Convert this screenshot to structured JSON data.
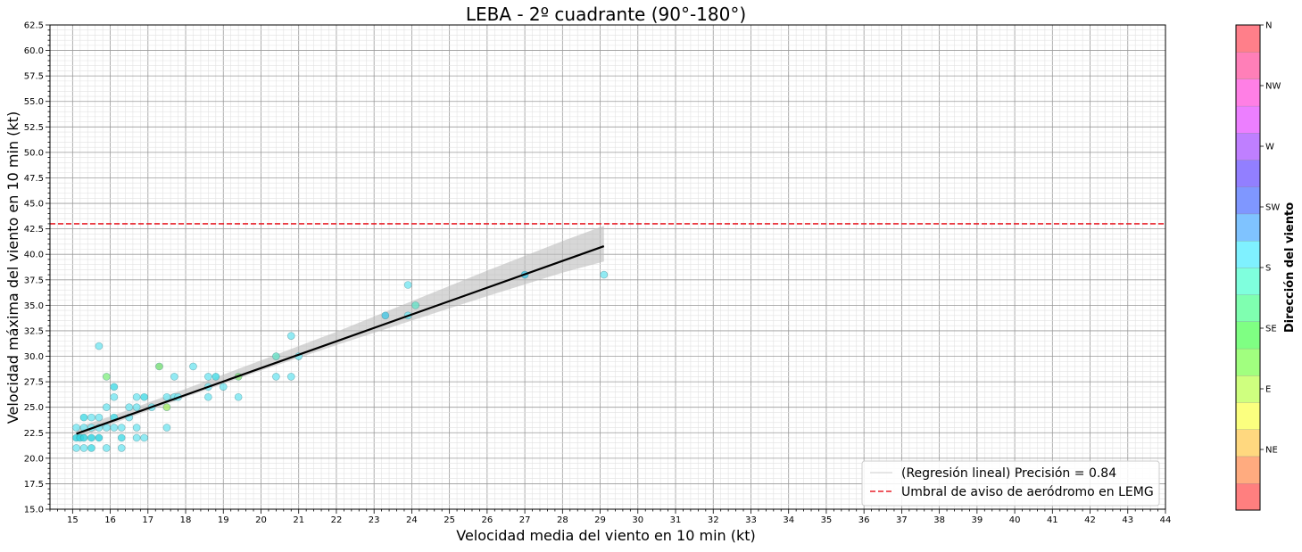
{
  "chart_data": {
    "type": "scatter",
    "title": "LEBA - 2º cuadrante (90°-180°)",
    "xlabel": "Velocidad media del viento en 10 min (kt)",
    "ylabel": "Velocidad máxima del viento en 10 min (kt)",
    "xlim": [
      14.4,
      44
    ],
    "ylim": [
      15,
      62.5
    ],
    "x_ticks": [
      "15",
      "16",
      "17",
      "18",
      "19",
      "20",
      "21",
      "22",
      "23",
      "24",
      "25",
      "26",
      "27",
      "28",
      "29",
      "30",
      "31",
      "32",
      "33",
      "34",
      "35",
      "36",
      "37",
      "38",
      "39",
      "40",
      "41",
      "42",
      "43",
      "44"
    ],
    "y_ticks": [
      "15.0",
      "17.5",
      "20.0",
      "22.5",
      "25.0",
      "27.5",
      "30.0",
      "32.5",
      "35.0",
      "37.5",
      "40.0",
      "42.5",
      "45.0",
      "47.5",
      "50.0",
      "52.5",
      "55.0",
      "57.5",
      "60.0",
      "62.5"
    ],
    "grid": true,
    "legend_position": "lower-right",
    "legend": [
      {
        "label": "(Regresión lineal) Precisión = 0.84",
        "color": "#dddddd",
        "style": "solid"
      },
      {
        "label": "Umbral de aviso de aeródromo en LEMG",
        "color": "#e8202a",
        "style": "dashed"
      }
    ],
    "threshold_y": 43,
    "regression": {
      "x": [
        15.1,
        29.1
      ],
      "y": [
        22.4,
        40.8
      ]
    },
    "band": {
      "x": [
        15.1,
        16,
        18,
        20,
        22,
        24,
        26,
        28,
        29.1
      ],
      "lower": [
        21.9,
        23.3,
        26.0,
        28.6,
        31.1,
        33.5,
        35.9,
        38.2,
        39.3
      ],
      "upper": [
        23.0,
        24.1,
        26.8,
        29.6,
        32.4,
        35.4,
        38.4,
        41.3,
        42.8
      ]
    },
    "points": [
      {
        "x": 15.1,
        "y": 21,
        "c": "#7fe7f2"
      },
      {
        "x": 15.1,
        "y": 22,
        "c": "#35d5e2"
      },
      {
        "x": 15.1,
        "y": 23,
        "c": "#7fe7f2"
      },
      {
        "x": 15.2,
        "y": 22,
        "c": "#35d5e2"
      },
      {
        "x": 15.3,
        "y": 21,
        "c": "#7fe7f2"
      },
      {
        "x": 15.3,
        "y": 22,
        "c": "#35d5e2"
      },
      {
        "x": 15.3,
        "y": 23,
        "c": "#7fe7f2"
      },
      {
        "x": 15.3,
        "y": 24,
        "c": "#4fdde8"
      },
      {
        "x": 15.5,
        "y": 21,
        "c": "#4fdde8"
      },
      {
        "x": 15.5,
        "y": 22,
        "c": "#35d5e2"
      },
      {
        "x": 15.5,
        "y": 23,
        "c": "#7fe7f2"
      },
      {
        "x": 15.5,
        "y": 24,
        "c": "#7fe7f2"
      },
      {
        "x": 15.7,
        "y": 22,
        "c": "#35d5e2"
      },
      {
        "x": 15.7,
        "y": 23,
        "c": "#7fe7f2"
      },
      {
        "x": 15.7,
        "y": 24,
        "c": "#7fe7f2"
      },
      {
        "x": 15.7,
        "y": 31,
        "c": "#7fe7f2"
      },
      {
        "x": 15.9,
        "y": 21,
        "c": "#7fe7f2"
      },
      {
        "x": 15.9,
        "y": 23,
        "c": "#7fe7f2"
      },
      {
        "x": 15.9,
        "y": 25,
        "c": "#7fe7f2"
      },
      {
        "x": 15.9,
        "y": 28,
        "c": "#8ef08c"
      },
      {
        "x": 16.1,
        "y": 23,
        "c": "#7fe7f2"
      },
      {
        "x": 16.1,
        "y": 24,
        "c": "#4fdde8"
      },
      {
        "x": 16.1,
        "y": 26,
        "c": "#7fe7f2"
      },
      {
        "x": 16.1,
        "y": 27,
        "c": "#4fdde8"
      },
      {
        "x": 16.3,
        "y": 21,
        "c": "#7fe7f2"
      },
      {
        "x": 16.3,
        "y": 22,
        "c": "#4fdde8"
      },
      {
        "x": 16.3,
        "y": 23,
        "c": "#7fe7f2"
      },
      {
        "x": 16.5,
        "y": 24,
        "c": "#7fe7f2"
      },
      {
        "x": 16.5,
        "y": 25,
        "c": "#7fe7f2"
      },
      {
        "x": 16.7,
        "y": 22,
        "c": "#7fe7f2"
      },
      {
        "x": 16.7,
        "y": 23,
        "c": "#7fe7f2"
      },
      {
        "x": 16.7,
        "y": 25,
        "c": "#7fe7f2"
      },
      {
        "x": 16.7,
        "y": 26,
        "c": "#7fe7f2"
      },
      {
        "x": 16.9,
        "y": 22,
        "c": "#7fe7f2"
      },
      {
        "x": 16.9,
        "y": 26,
        "c": "#4fdde8"
      },
      {
        "x": 17.1,
        "y": 25,
        "c": "#7fe7f2"
      },
      {
        "x": 17.3,
        "y": 29,
        "c": "#7fdf7d"
      },
      {
        "x": 17.5,
        "y": 23,
        "c": "#7fe7f2"
      },
      {
        "x": 17.5,
        "y": 25,
        "c": "#a8ec6e"
      },
      {
        "x": 17.5,
        "y": 26,
        "c": "#7fe7f2"
      },
      {
        "x": 17.7,
        "y": 26,
        "c": "#7fe7f2"
      },
      {
        "x": 17.7,
        "y": 28,
        "c": "#7fe7f2"
      },
      {
        "x": 17.8,
        "y": 26,
        "c": "#7fe7f2"
      },
      {
        "x": 18.2,
        "y": 29,
        "c": "#7fe7f2"
      },
      {
        "x": 18.6,
        "y": 26,
        "c": "#7fe7f2"
      },
      {
        "x": 18.6,
        "y": 27,
        "c": "#7fe7f2"
      },
      {
        "x": 18.6,
        "y": 28,
        "c": "#7fe7f2"
      },
      {
        "x": 18.8,
        "y": 28,
        "c": "#4fdde8"
      },
      {
        "x": 19.0,
        "y": 27,
        "c": "#7fe7f2"
      },
      {
        "x": 19.4,
        "y": 26,
        "c": "#7fe7f2"
      },
      {
        "x": 19.4,
        "y": 28,
        "c": "#8ee07e"
      },
      {
        "x": 20.4,
        "y": 28,
        "c": "#7fe7f2"
      },
      {
        "x": 20.4,
        "y": 30,
        "c": "#6fe0c8"
      },
      {
        "x": 20.8,
        "y": 28,
        "c": "#7fe7f2"
      },
      {
        "x": 20.8,
        "y": 32,
        "c": "#7fe7f2"
      },
      {
        "x": 21.0,
        "y": 30,
        "c": "#7fe7f2"
      },
      {
        "x": 23.3,
        "y": 34,
        "c": "#4fc8e4"
      },
      {
        "x": 23.9,
        "y": 34,
        "c": "#7fe7f2"
      },
      {
        "x": 23.9,
        "y": 37,
        "c": "#7fe7f2"
      },
      {
        "x": 24.1,
        "y": 35,
        "c": "#6fe0c8"
      },
      {
        "x": 27.0,
        "y": 38,
        "c": "#4fc8e4"
      },
      {
        "x": 29.1,
        "y": 38,
        "c": "#7fe7f2"
      }
    ]
  },
  "colorbar": {
    "label": "Dirección del viento",
    "tick_labels": [
      "NE",
      "E",
      "SE",
      "S",
      "SW",
      "W",
      "NW",
      "N"
    ],
    "tick_values": [
      45,
      90,
      135,
      180,
      225,
      270,
      315,
      360
    ],
    "range": [
      0,
      360
    ],
    "colors": [
      "#ff7f7f",
      "#ffab7f",
      "#ffd87f",
      "#fbff7f",
      "#cfff7f",
      "#a1ff7f",
      "#7fff83",
      "#7fffb0",
      "#7fffdd",
      "#7ff1ff",
      "#7fc3ff",
      "#7f97ff",
      "#927fff",
      "#bf7fff",
      "#ec7fff",
      "#ff7fe5",
      "#ff7fb8",
      "#ff7f8a"
    ]
  }
}
